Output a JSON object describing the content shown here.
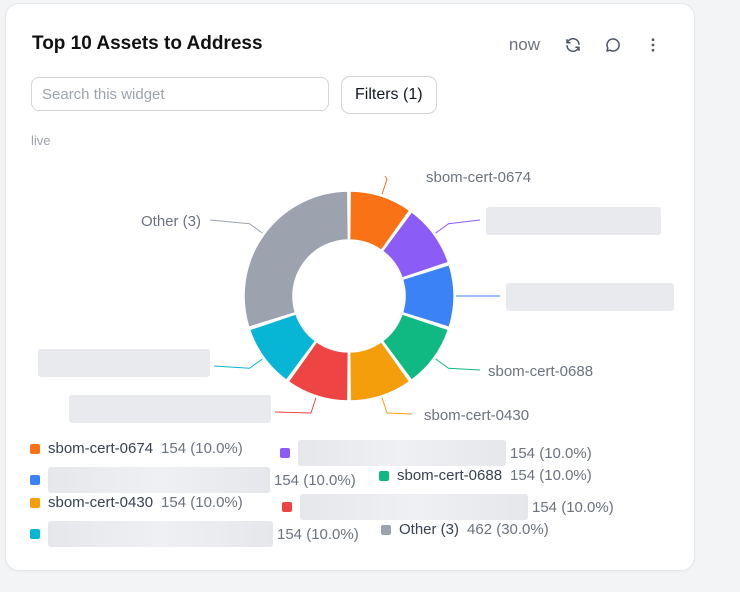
{
  "widget": {
    "title": "Top 10 Assets to Address",
    "timestamp": "now",
    "search_placeholder": "Search this widget",
    "filters_label": "Filters (1)",
    "status": "live",
    "icons": [
      "refresh-icon",
      "comment-icon",
      "more-vertical-icon"
    ]
  },
  "chart_data": {
    "type": "pie",
    "donut": true,
    "title": "",
    "slices": [
      {
        "name": "sbom-cert-0674",
        "value": 154,
        "percent": "10.0%",
        "color": "#f97316",
        "label_visible": true
      },
      {
        "name": "",
        "value": 154,
        "percent": "10.0%",
        "color": "#8b5cf6",
        "label_visible": false
      },
      {
        "name": "",
        "value": 154,
        "percent": "10.0%",
        "color": "#3b82f6",
        "label_visible": false
      },
      {
        "name": "sbom-cert-0688",
        "value": 154,
        "percent": "10.0%",
        "color": "#10b981",
        "label_visible": true
      },
      {
        "name": "sbom-cert-0430",
        "value": 154,
        "percent": "10.0%",
        "color": "#f59e0b",
        "label_visible": true
      },
      {
        "name": "",
        "value": 154,
        "percent": "10.0%",
        "color": "#ef4444",
        "label_visible": false
      },
      {
        "name": "",
        "value": 154,
        "percent": "10.0%",
        "color": "#06b6d4",
        "label_visible": false
      },
      {
        "name": "Other (3)",
        "value": 462,
        "percent": "30.0%",
        "color": "#9ca3af",
        "label_visible": true
      }
    ],
    "legend_placement": "bottom"
  }
}
